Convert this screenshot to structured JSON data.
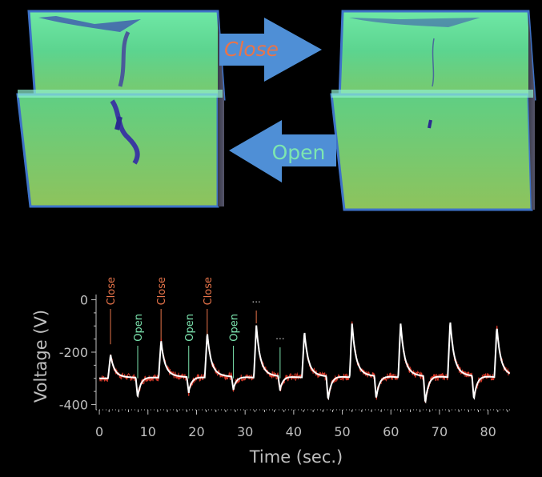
{
  "colors": {
    "close": "#e8744a",
    "open": "#7de6b0",
    "arrow": "#4f8fd6",
    "trace_red": "#d83a2a",
    "trace_white": "#ffffff",
    "axis": "#bfbfbf"
  },
  "illustration": {
    "close_arrow_label": "Close",
    "open_arrow_label": "Open"
  },
  "chart_data": {
    "type": "line",
    "xlabel": "Time (sec.)",
    "ylabel": "Voltage (V)",
    "xlim": [
      -1,
      85
    ],
    "ylim": [
      -420,
      20
    ],
    "x_ticks": [
      0,
      10,
      20,
      30,
      40,
      50,
      60,
      70,
      80
    ],
    "y_ticks": [
      0,
      -200,
      -400
    ],
    "x_tick_labels": [
      "0",
      "10",
      "20",
      "30",
      "40",
      "50",
      "60",
      "70",
      "80"
    ],
    "y_tick_labels": [
      "0",
      "-200",
      "-400"
    ],
    "grid": false,
    "baseline": -300,
    "events": [
      {
        "type": "close",
        "t": 2.3,
        "label": "Close"
      },
      {
        "type": "open",
        "t": 7.9,
        "label": "Open"
      },
      {
        "type": "close",
        "t": 12.7,
        "label": "Close"
      },
      {
        "type": "open",
        "t": 18.4,
        "label": "Open"
      },
      {
        "type": "close",
        "t": 22.2,
        "label": "Close"
      },
      {
        "type": "open",
        "t": 27.6,
        "label": "Open"
      },
      {
        "type": "close",
        "t": 32.3,
        "label": "..."
      },
      {
        "type": "open",
        "t": 37.2,
        "label": "..."
      }
    ],
    "close_peaks": [
      {
        "t": 2.3,
        "v": -210
      },
      {
        "t": 12.7,
        "v": -160
      },
      {
        "t": 22.2,
        "v": -130
      },
      {
        "t": 32.3,
        "v": -100
      },
      {
        "t": 42.2,
        "v": -125
      },
      {
        "t": 52.0,
        "v": -95
      },
      {
        "t": 62.0,
        "v": -95
      },
      {
        "t": 72.2,
        "v": -85
      },
      {
        "t": 81.8,
        "v": -110
      }
    ],
    "open_troughs": [
      {
        "t": 7.9,
        "v": -380
      },
      {
        "t": 18.4,
        "v": -360
      },
      {
        "t": 27.6,
        "v": -350
      },
      {
        "t": 37.2,
        "v": -355
      },
      {
        "t": 47.1,
        "v": -395
      },
      {
        "t": 57.0,
        "v": -390
      },
      {
        "t": 67.1,
        "v": -410
      },
      {
        "t": 77.1,
        "v": -395
      }
    ]
  }
}
